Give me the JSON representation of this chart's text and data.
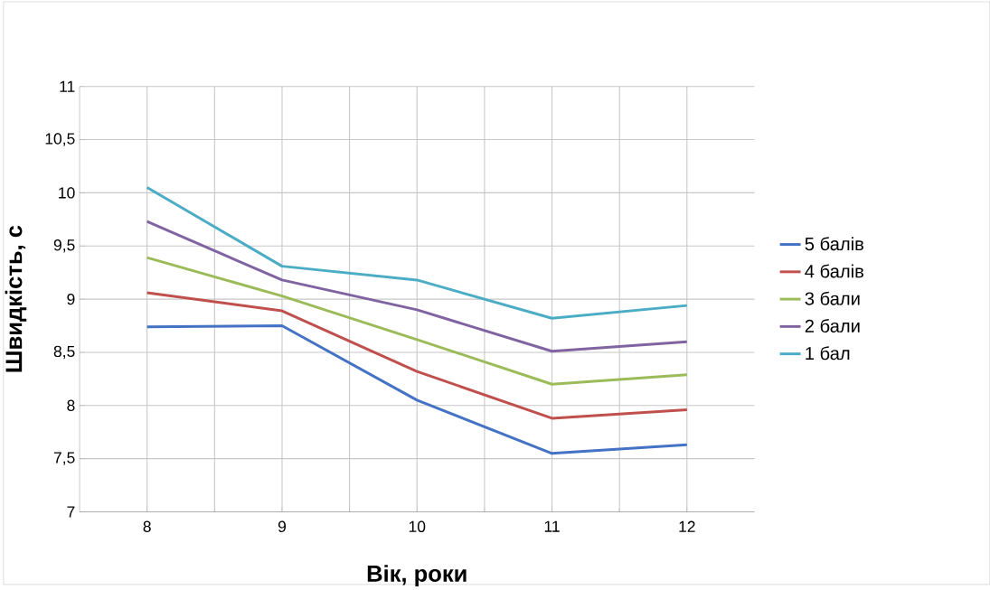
{
  "chart_data": {
    "type": "line",
    "xlabel": "Вік, роки",
    "ylabel": "Швидкість, с",
    "categories": [
      "8",
      "9",
      "10",
      "11",
      "12"
    ],
    "series": [
      {
        "name": "5 балів",
        "color": "#4472c4",
        "values": [
          8.74,
          8.75,
          8.05,
          7.55,
          7.63
        ]
      },
      {
        "name": "4 балів",
        "color": "#c0504d",
        "values": [
          9.06,
          8.89,
          8.32,
          7.88,
          7.96
        ]
      },
      {
        "name": "3 бали",
        "color": "#9bbb59",
        "values": [
          9.39,
          9.03,
          8.62,
          8.2,
          8.29
        ]
      },
      {
        "name": "2 бали",
        "color": "#8064a2",
        "values": [
          9.73,
          9.18,
          8.9,
          8.51,
          8.6
        ]
      },
      {
        "name": "1 бал",
        "color": "#4bacc6",
        "values": [
          10.05,
          9.31,
          9.18,
          8.82,
          8.94
        ]
      }
    ],
    "ylim": [
      7,
      11
    ],
    "yticks": [
      7,
      {
        "value": 7.5,
        "label": "7,5"
      },
      8,
      {
        "value": 8.5,
        "label": "8,5"
      },
      9,
      {
        "value": 9.5,
        "label": "9,5"
      },
      10,
      {
        "value": 10.5,
        "label": "10,5"
      },
      11
    ],
    "grid": true,
    "legend": "right",
    "marker": "none",
    "line_style": "solid"
  }
}
